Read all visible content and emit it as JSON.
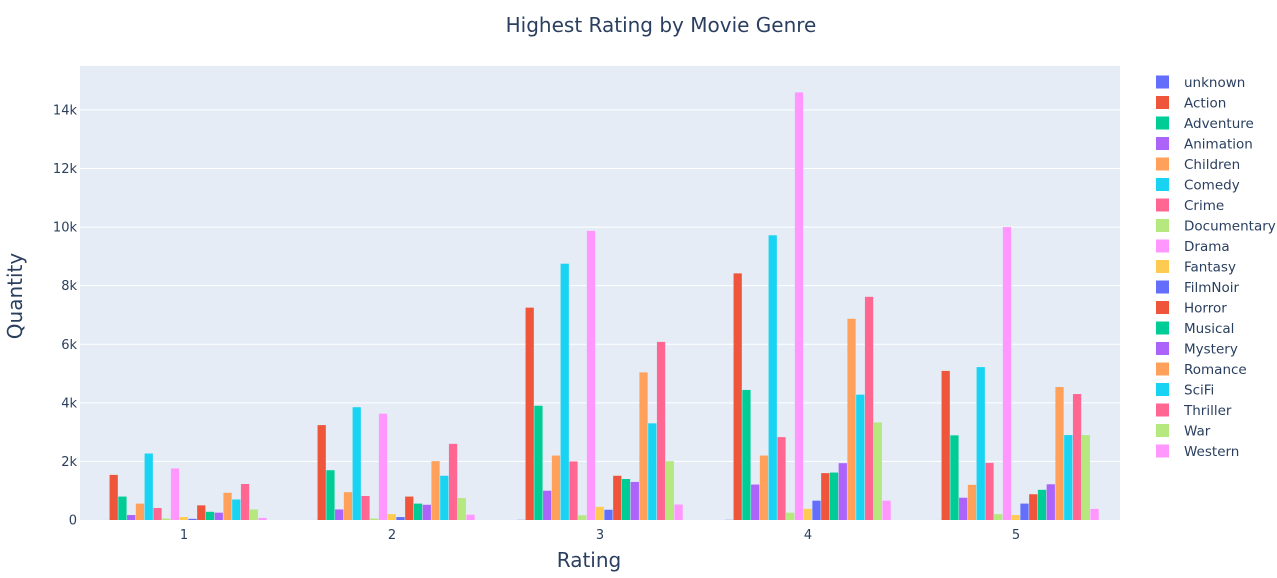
{
  "chart_data": {
    "type": "bar",
    "title": "Highest Rating by Movie Genre",
    "xlabel": "Rating",
    "ylabel": "Quantity",
    "categories": [
      "1",
      "2",
      "3",
      "4",
      "5"
    ],
    "ylim": [
      0,
      15500
    ],
    "y_ticks": [
      {
        "value": 0,
        "label": "0"
      },
      {
        "value": 2000,
        "label": "2k"
      },
      {
        "value": 4000,
        "label": "4k"
      },
      {
        "value": 6000,
        "label": "6k"
      },
      {
        "value": 8000,
        "label": "8k"
      },
      {
        "value": 10000,
        "label": "10k"
      },
      {
        "value": 12000,
        "label": "12k"
      },
      {
        "value": 14000,
        "label": "14k"
      }
    ],
    "grid": true,
    "legend_position": "right",
    "series": [
      {
        "name": "unknown",
        "color": "#636efa",
        "values": [
          1,
          1,
          5,
          5,
          1
        ]
      },
      {
        "name": "Action",
        "color": "#EF553B",
        "values": [
          1540,
          3240,
          7250,
          8420,
          5090
        ]
      },
      {
        "name": "Adventure",
        "color": "#00cc96",
        "values": [
          800,
          1700,
          3900,
          4440,
          2890
        ]
      },
      {
        "name": "Animation",
        "color": "#ab63fa",
        "values": [
          170,
          360,
          1000,
          1210,
          760
        ]
      },
      {
        "name": "Children",
        "color": "#FFA15A",
        "values": [
          560,
          950,
          2200,
          2200,
          1200
        ]
      },
      {
        "name": "Comedy",
        "color": "#19d3f3",
        "values": [
          2270,
          3850,
          8750,
          9720,
          5220
        ]
      },
      {
        "name": "Crime",
        "color": "#FF6692",
        "values": [
          410,
          820,
          2000,
          2830,
          1950
        ]
      },
      {
        "name": "Documentary",
        "color": "#B6E880",
        "values": [
          50,
          50,
          160,
          250,
          200
        ]
      },
      {
        "name": "Drama",
        "color": "#FF97FF",
        "values": [
          1760,
          3630,
          9870,
          14600,
          10000
        ]
      },
      {
        "name": "Fantasy",
        "color": "#FECB52",
        "values": [
          100,
          200,
          450,
          380,
          170
        ]
      },
      {
        "name": "FilmNoir",
        "color": "#636efa",
        "values": [
          40,
          100,
          350,
          660,
          560
        ]
      },
      {
        "name": "Horror",
        "color": "#EF553B",
        "values": [
          500,
          800,
          1510,
          1600,
          880
        ]
      },
      {
        "name": "Musical",
        "color": "#00cc96",
        "values": [
          280,
          560,
          1400,
          1620,
          1030
        ]
      },
      {
        "name": "Mystery",
        "color": "#ab63fa",
        "values": [
          250,
          520,
          1300,
          1940,
          1220
        ]
      },
      {
        "name": "Romance",
        "color": "#FFA15A",
        "values": [
          930,
          2010,
          5040,
          6870,
          4540
        ]
      },
      {
        "name": "SciFi",
        "color": "#19d3f3",
        "values": [
          700,
          1510,
          3300,
          4280,
          2900
        ]
      },
      {
        "name": "Thriller",
        "color": "#FF6692",
        "values": [
          1230,
          2600,
          6080,
          7620,
          4300
        ]
      },
      {
        "name": "War",
        "color": "#B6E880",
        "values": [
          360,
          750,
          2010,
          3330,
          2900
        ]
      },
      {
        "name": "Western",
        "color": "#FF97FF",
        "values": [
          70,
          180,
          530,
          660,
          380
        ]
      }
    ]
  }
}
